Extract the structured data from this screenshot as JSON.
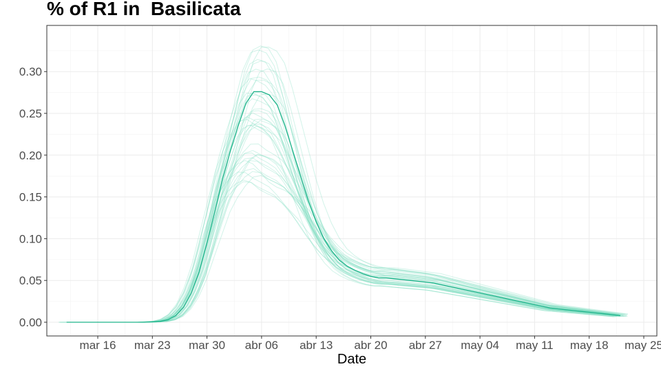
{
  "chart_data": {
    "type": "line",
    "title": "% of R1 in  Basilicata",
    "xlabel": "Date",
    "ylabel": "",
    "x_tick_labels": [
      "mar 16",
      "mar 23",
      "mar 30",
      "abr 06",
      "abr 13",
      "abr 20",
      "abr 27",
      "may 04",
      "may 11",
      "may 18",
      "may 25"
    ],
    "y_tick_labels": [
      "0.00",
      "0.05",
      "0.10",
      "0.15",
      "0.20",
      "0.25",
      "0.30"
    ],
    "ylim": [
      -0.017,
      0.356
    ],
    "grid": true,
    "legend": "none",
    "colors": {
      "main_line": "#1db38a",
      "ensemble_lines": "#7fdcc0",
      "panel_border": "#333333",
      "grid": "#ebebeb"
    },
    "ensemble_count": 40,
    "ensemble_peak_range": [
      0.155,
      0.335
    ],
    "series": [
      {
        "x": [
          "mar 12",
          "mar 14",
          "mar 16",
          "mar 18",
          "mar 20",
          "mar 22",
          "mar 24",
          "mar 25",
          "mar 26",
          "mar 27",
          "mar 28",
          "mar 29",
          "mar 30",
          "mar 31",
          "abr 01",
          "abr 02",
          "abr 03",
          "abr 04",
          "abr 05",
          "abr 06",
          "abr 07",
          "abr 08",
          "abr 09",
          "abr 10",
          "abr 11",
          "abr 12",
          "abr 13",
          "abr 14",
          "abr 15",
          "abr 16",
          "abr 17",
          "abr 18",
          "abr 19",
          "abr 20",
          "abr 21",
          "abr 22",
          "abr 23",
          "abr 24",
          "abr 25",
          "abr 26",
          "abr 27",
          "abr 28",
          "abr 29",
          "abr 30",
          "may 01",
          "may 02",
          "may 03",
          "may 04",
          "may 05",
          "may 06",
          "may 07",
          "may 08",
          "may 09",
          "may 10",
          "may 11",
          "may 12",
          "may 13",
          "may 14",
          "may 15",
          "may 16",
          "may 17",
          "may 18",
          "may 19",
          "may 20",
          "may 21",
          "may 22"
        ],
        "values": [
          0.0,
          0.0,
          0.0,
          0.0,
          0.0,
          0.0,
          0.001,
          0.003,
          0.008,
          0.018,
          0.035,
          0.06,
          0.095,
          0.132,
          0.172,
          0.205,
          0.235,
          0.262,
          0.276,
          0.276,
          0.272,
          0.26,
          0.235,
          0.205,
          0.175,
          0.145,
          0.12,
          0.1,
          0.085,
          0.074,
          0.067,
          0.062,
          0.058,
          0.055,
          0.053,
          0.053,
          0.052,
          0.051,
          0.05,
          0.049,
          0.048,
          0.047,
          0.045,
          0.043,
          0.041,
          0.039,
          0.037,
          0.035,
          0.033,
          0.031,
          0.029,
          0.027,
          0.025,
          0.023,
          0.021,
          0.019,
          0.017,
          0.016,
          0.015,
          0.014,
          0.013,
          0.012,
          0.011,
          0.01,
          0.009,
          0.008
        ]
      }
    ]
  }
}
